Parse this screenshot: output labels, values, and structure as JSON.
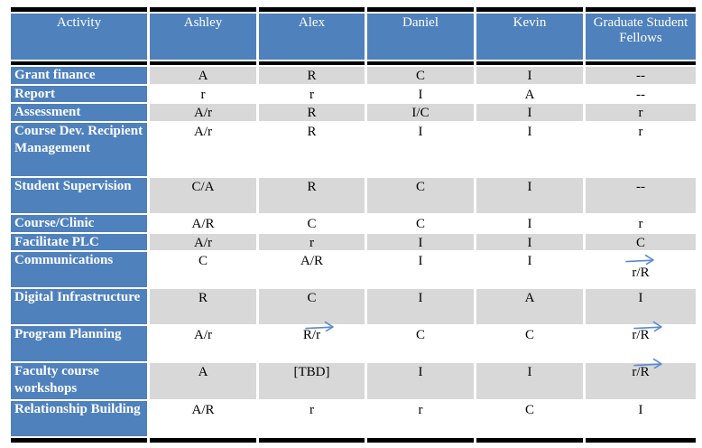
{
  "table": {
    "header": [
      "Activity",
      "Ashley",
      "Alex",
      "Daniel",
      "Kevin",
      "Graduate Student Fellows"
    ],
    "rows": [
      {
        "activity": "Grant finance",
        "shade": "gray",
        "cells": [
          {
            "text": "A"
          },
          {
            "text": "R"
          },
          {
            "text": "C"
          },
          {
            "text": "I"
          },
          {
            "text": "--"
          }
        ]
      },
      {
        "activity": "Report",
        "shade": "white",
        "cells": [
          {
            "text": "r"
          },
          {
            "text": "r"
          },
          {
            "text": "I"
          },
          {
            "text": "A"
          },
          {
            "text": "--"
          }
        ]
      },
      {
        "activity": "Assessment",
        "shade": "gray",
        "cells": [
          {
            "text": "A/r"
          },
          {
            "text": "R"
          },
          {
            "text": "I/C"
          },
          {
            "text": "I"
          },
          {
            "text": "r"
          }
        ]
      },
      {
        "activity": "Course Dev. Recipient Management",
        "shade": "white",
        "cells": [
          {
            "text": "A/r"
          },
          {
            "text": "R"
          },
          {
            "text": "I"
          },
          {
            "text": "I"
          },
          {
            "text": "r"
          }
        ]
      },
      {
        "activity": "Student Supervision",
        "shade": "gray",
        "cells": [
          {
            "text": "C/A"
          },
          {
            "text": "R"
          },
          {
            "text": "C"
          },
          {
            "text": "I"
          },
          {
            "text": "--"
          }
        ]
      },
      {
        "activity": "Course/Clinic",
        "shade": "white",
        "cells": [
          {
            "text": "A/R"
          },
          {
            "text": "C"
          },
          {
            "text": "C"
          },
          {
            "text": "I"
          },
          {
            "text": "r"
          }
        ]
      },
      {
        "activity": "Facilitate PLC",
        "shade": "gray",
        "cells": [
          {
            "text": "A/r"
          },
          {
            "text": "r"
          },
          {
            "text": "I"
          },
          {
            "text": "I"
          },
          {
            "text": "C"
          }
        ]
      },
      {
        "activity": "Communications",
        "shade": "white",
        "cells": [
          {
            "text": "C"
          },
          {
            "text": "A/R"
          },
          {
            "text": "I"
          },
          {
            "text": "I"
          },
          {
            "text": "r/R",
            "arrow": "stacked"
          }
        ]
      },
      {
        "activity": "Digital Infrastructure",
        "shade": "gray",
        "cells": [
          {
            "text": "R"
          },
          {
            "text": "C"
          },
          {
            "text": "I"
          },
          {
            "text": "A"
          },
          {
            "text": "I"
          }
        ]
      },
      {
        "activity": "Program Planning",
        "shade": "white",
        "cells": [
          {
            "text": "A/r"
          },
          {
            "text": "R/r",
            "arrow": "overlap"
          },
          {
            "text": "C"
          },
          {
            "text": "C"
          },
          {
            "text": "r/R",
            "arrow": "overlap"
          }
        ]
      },
      {
        "activity": "Faculty course workshops",
        "shade": "gray",
        "cells": [
          {
            "text": "A"
          },
          {
            "text": "[TBD]"
          },
          {
            "text": "I"
          },
          {
            "text": "I"
          },
          {
            "text": "r/R",
            "arrow": "overlap"
          }
        ]
      },
      {
        "activity": "Relationship Building",
        "shade": "white",
        "cells": [
          {
            "text": "A/R"
          },
          {
            "text": "r"
          },
          {
            "text": "r"
          },
          {
            "text": "C"
          },
          {
            "text": "I"
          }
        ]
      }
    ]
  },
  "icons": {
    "arrow": "right-arrow-icon"
  },
  "colors": {
    "header_blue": "#4f81bd",
    "stripe_gray": "#d8d8d8",
    "arrow_blue": "#5b8bd0",
    "border_black": "#000000",
    "header_text": "#ffffff",
    "data_text": "#000000"
  }
}
